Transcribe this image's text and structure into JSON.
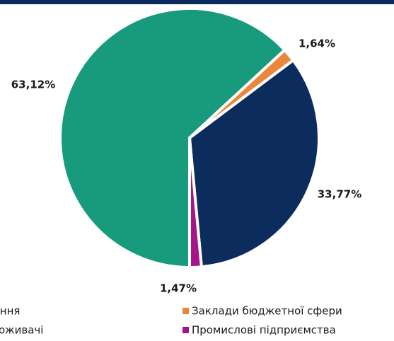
{
  "chart_data": {
    "type": "pie",
    "categories": [
      "Населення",
      "Заклади бюджетної сфери",
      "Інші споживачі",
      "Промислові підприємства"
    ],
    "values": [
      63.12,
      1.64,
      33.77,
      1.47
    ],
    "value_labels": [
      "63,12%",
      "1,64%",
      "33,77%",
      "1,47%"
    ],
    "colors": [
      "#189a7d",
      "#e9873a",
      "#0b2c5d",
      "#a5148b"
    ]
  }
}
